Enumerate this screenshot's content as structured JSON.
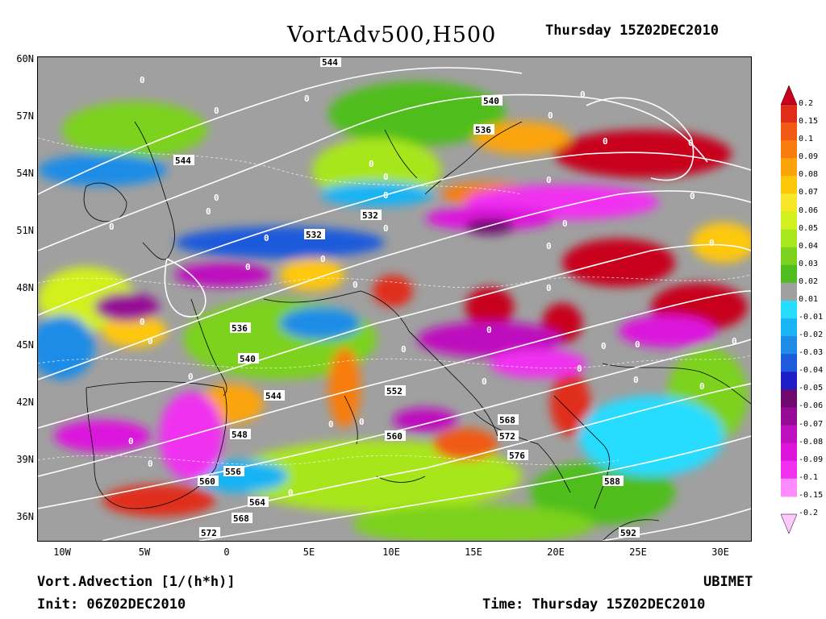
{
  "header": {
    "title": "VortAdv500,H500",
    "valid_time": "Thursday 15Z02DEC2010"
  },
  "footer": {
    "variable": "Vort.Advection [1/(h*h)]",
    "init": "Init: 06Z02DEC2010",
    "brand": "UBIMET",
    "time": "Time: Thursday 15Z02DEC2010"
  },
  "axes": {
    "lat_labels": [
      "60N",
      "57N",
      "54N",
      "51N",
      "48N",
      "45N",
      "42N",
      "39N",
      "36N"
    ],
    "lon_labels": [
      "10W",
      "5W",
      "0",
      "5E",
      "10E",
      "15E",
      "20E",
      "25E",
      "30E"
    ]
  },
  "colorbar": {
    "labels": [
      "0.2",
      "0.15",
      "0.1",
      "0.09",
      "0.08",
      "0.07",
      "0.06",
      "0.05",
      "0.04",
      "0.03",
      "0.02",
      "0.01",
      "-0.01",
      "-0.02",
      "-0.03",
      "-0.04",
      "-0.05",
      "-0.06",
      "-0.07",
      "-0.08",
      "-0.09",
      "-0.1",
      "-0.15",
      "-0.2"
    ],
    "colors": [
      "#c8001e",
      "#e02d1a",
      "#f05a14",
      "#f87d0e",
      "#fba40a",
      "#fec80a",
      "#f8e628",
      "#d2f01e",
      "#a8e61e",
      "#7cd21e",
      "#50be1e",
      "#a0a0a0",
      "#28dcff",
      "#18b4f5",
      "#1e8ce6",
      "#1e5adc",
      "#1e1ec8",
      "#6e0a6e",
      "#960a96",
      "#be10be",
      "#dc14dc",
      "#f032f0",
      "#ff8cff",
      "#ffc8ff"
    ]
  },
  "contours": {
    "height_labels": [
      "544",
      "540",
      "536",
      "544",
      "532",
      "532",
      "536",
      "540",
      "544",
      "552",
      "560",
      "548",
      "556",
      "560",
      "564",
      "568",
      "572",
      "568",
      "572",
      "576",
      "588",
      "592"
    ],
    "zero_labels": [
      "0",
      "0",
      "0",
      "0",
      "0",
      "0",
      "0",
      "0",
      "0",
      "0",
      "0",
      "0",
      "0",
      "0",
      "0",
      "0",
      "0",
      "0",
      "0",
      "0",
      "0",
      "0",
      "0",
      "0",
      "0",
      "0",
      "0",
      "0",
      "0",
      "0",
      "0",
      "0",
      "0",
      "0",
      "0",
      "0",
      "0",
      "0",
      "0",
      "0",
      "0"
    ]
  }
}
